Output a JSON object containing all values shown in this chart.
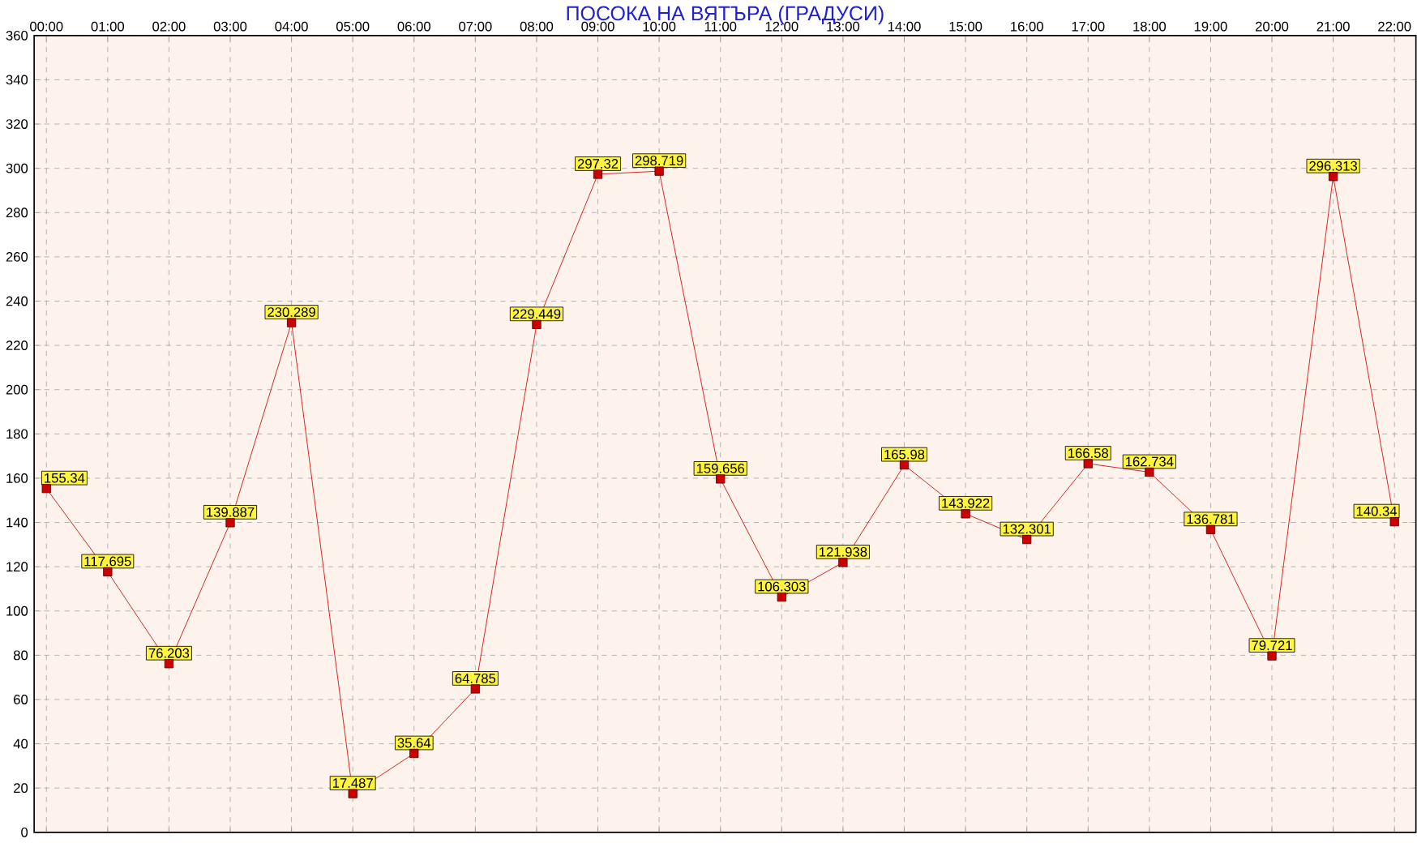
{
  "chart_data": {
    "type": "line",
    "title": "ПОСОКА НА ВЯТЪРА    (ГРАДУСИ)",
    "categories": [
      "00:00",
      "01:00",
      "02:00",
      "03:00",
      "04:00",
      "05:00",
      "06:00",
      "07:00",
      "08:00",
      "09:00",
      "10:00",
      "11:00",
      "12:00",
      "13:00",
      "14:00",
      "15:00",
      "16:00",
      "17:00",
      "18:00",
      "19:00",
      "20:00",
      "21:00",
      "22:00"
    ],
    "values": [
      155.34,
      117.695,
      76.203,
      139.887,
      230.289,
      17.487,
      35.64,
      64.785,
      229.449,
      297.32,
      298.719,
      159.656,
      106.303,
      121.938,
      165.98,
      143.922,
      132.301,
      166.58,
      162.734,
      136.781,
      79.721,
      296.313,
      140.34
    ],
    "color": "#cc0000",
    "ylim": [
      0,
      360
    ],
    "yticks": [
      0,
      20,
      40,
      60,
      80,
      100,
      120,
      140,
      160,
      180,
      200,
      220,
      240,
      260,
      280,
      300,
      320,
      340,
      360
    ],
    "grid": true,
    "marker": "square",
    "line_style": "solid",
    "data_labels": true
  }
}
